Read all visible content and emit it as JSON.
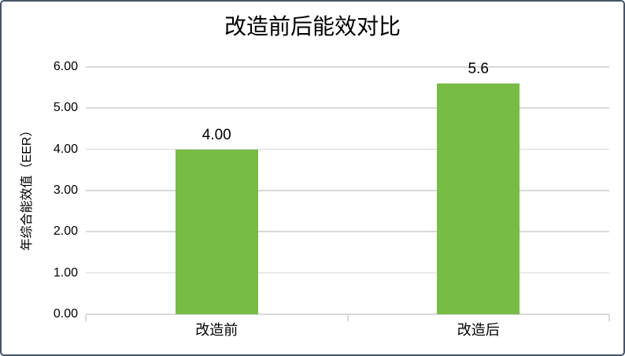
{
  "chart_data": {
    "type": "bar",
    "title": "改造前后能效对比",
    "ylabel": "年综合能效值（EER）",
    "xlabel": "",
    "categories": [
      "改造前",
      "改造后"
    ],
    "values": [
      4.0,
      5.6
    ],
    "data_labels": [
      "4.00",
      "5.6"
    ],
    "ylim": [
      0,
      6
    ],
    "ytick_step": 1,
    "ytick_labels": [
      "0.00",
      "1.00",
      "2.00",
      "3.00",
      "4.00",
      "5.00",
      "6.00"
    ],
    "grid": "horizontal gridlines on",
    "legend": "none",
    "bar_color": "#77BC44",
    "grid_color": "#D9D9D9",
    "axis_color": "#D9D9D9",
    "text_color": "#000000",
    "frame_border_color": "#44546A",
    "background_color": "#FFFFFF"
  }
}
